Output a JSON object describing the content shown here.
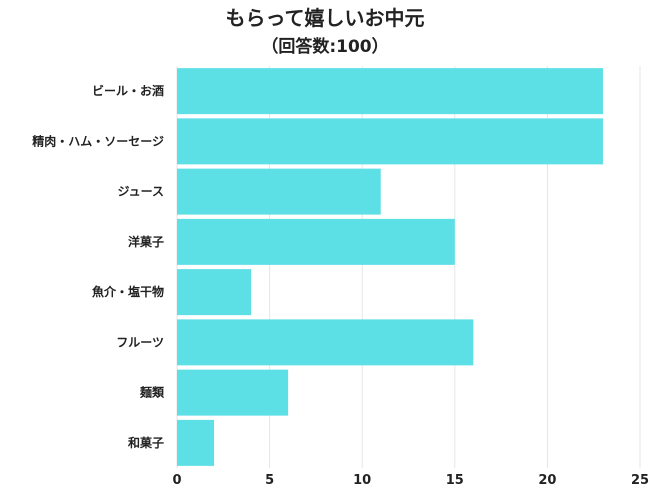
{
  "title": "もらって嬉しいお中元",
  "subtitle": "（回答数:100）",
  "chart_data": {
    "type": "bar",
    "orientation": "horizontal",
    "title": "もらって嬉しいお中元",
    "subtitle": "（回答数:100）",
    "categories": [
      "ビール・お酒",
      "精肉・ハム・ソーセージ",
      "ジュース",
      "洋菓子",
      "魚介・塩干物",
      "フルーツ",
      "麺類",
      "和菓子"
    ],
    "values": [
      23,
      23,
      11,
      15,
      4,
      16,
      6,
      2
    ],
    "xlim": [
      0,
      25
    ],
    "xticks": [
      0,
      5,
      10,
      15,
      20,
      25
    ],
    "grid": true,
    "bar_color": "#5ddfe6",
    "grid_color": "#e6e6e6"
  }
}
